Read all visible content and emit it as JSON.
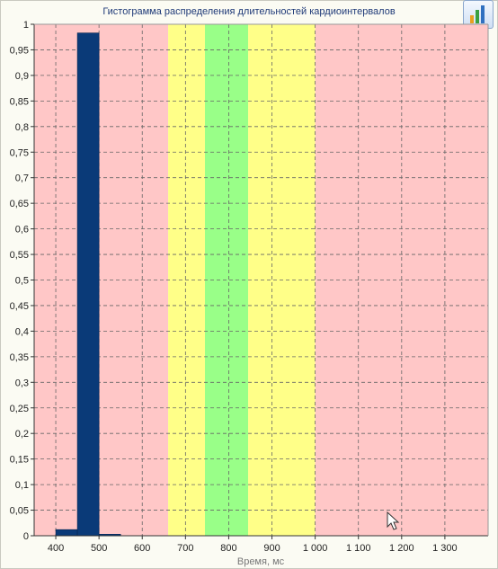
{
  "chart_data": {
    "type": "bar",
    "title": "Гистограмма распределения длительностей кардиоинтервалов",
    "xlabel": "Время, мс",
    "ylabel": "",
    "xlim": [
      350,
      1400
    ],
    "ylim": [
      0,
      1
    ],
    "x_ticks": [
      400,
      500,
      600,
      700,
      800,
      900,
      1000,
      1100,
      1200,
      1300
    ],
    "x_tick_labels": [
      "400",
      "500",
      "600",
      "700",
      "800",
      "900",
      "1 000",
      "1 100",
      "1 200",
      "1 300"
    ],
    "y_ticks": [
      0,
      0.05,
      0.1,
      0.15,
      0.2,
      0.25,
      0.3,
      0.35,
      0.4,
      0.45,
      0.5,
      0.55,
      0.6,
      0.65,
      0.7,
      0.75,
      0.8,
      0.85,
      0.9,
      0.95,
      1
    ],
    "y_tick_labels": [
      "0",
      "0,05",
      "0,1",
      "0,15",
      "0,2",
      "0,25",
      "0,3",
      "0,35",
      "0,4",
      "0,45",
      "0,5",
      "0,55",
      "0,6",
      "0,65",
      "0,7",
      "0,75",
      "0,8",
      "0,85",
      "0,9",
      "0,95",
      "1"
    ],
    "bars": [
      {
        "x0": 400,
        "x1": 450,
        "value": 0.012
      },
      {
        "x0": 450,
        "x1": 500,
        "value": 0.983
      },
      {
        "x0": 500,
        "x1": 550,
        "value": 0.003
      }
    ],
    "zones": [
      {
        "x0": 350,
        "x1": 660,
        "color": "#ffc7c7"
      },
      {
        "x0": 660,
        "x1": 745,
        "color": "#ffff88"
      },
      {
        "x0": 745,
        "x1": 845,
        "color": "#99ff88"
      },
      {
        "x0": 845,
        "x1": 1000,
        "color": "#ffff88"
      },
      {
        "x0": 1000,
        "x1": 1400,
        "color": "#ffc7c7"
      }
    ],
    "bar_color": "#0a3a78",
    "grid": true
  }
}
